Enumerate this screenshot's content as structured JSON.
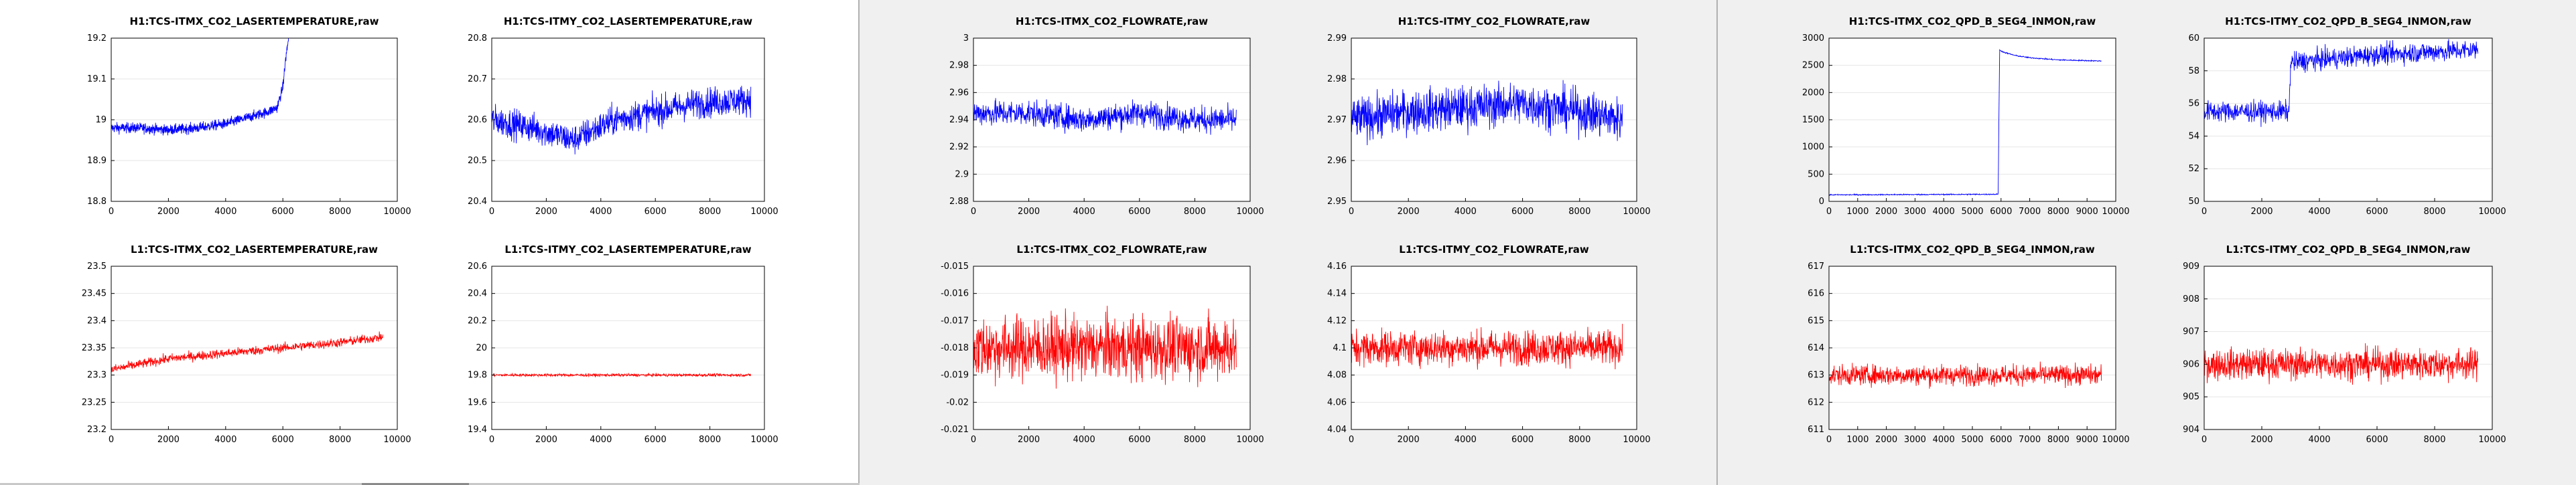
{
  "colors": {
    "h1_series": "#0000ff",
    "l1_series": "#ff0000",
    "axis": "#000000",
    "grid": "#e6e6e6",
    "panel_left": "#ffffff",
    "panel_mid": "#f0f0f0",
    "panel_right": "#f0f0f0"
  },
  "chart_data": [
    {
      "type": "line",
      "title": "H1:TCS-ITMX_CO2_LASERTEMPERATURE,raw",
      "xlim": [
        0,
        10000
      ],
      "ylim": [
        18.8,
        19.2
      ],
      "xticks": [
        "0",
        "2000",
        "4000",
        "6000",
        "8000",
        "10000"
      ],
      "yticks": [
        "18.8",
        "18.9",
        "19",
        "19.1",
        "19.2"
      ],
      "yvals": [
        18.8,
        18.9,
        19.0,
        19.1,
        19.2
      ],
      "series": [
        {
          "color": "#0000ff",
          "x": [
            0,
            1000,
            2000,
            3000,
            4000,
            4500,
            5000,
            5500,
            5800,
            6000,
            6100,
            6200
          ],
          "y": [
            18.98,
            18.98,
            18.975,
            18.98,
            18.99,
            19.0,
            19.01,
            19.02,
            19.03,
            19.08,
            19.15,
            19.2
          ]
        }
      ],
      "noise": 0.012
    },
    {
      "type": "line",
      "title": "H1:TCS-ITMY_CO2_LASERTEMPERATURE,raw",
      "xlim": [
        0,
        10000
      ],
      "ylim": [
        20.4,
        20.8
      ],
      "xticks": [
        "0",
        "2000",
        "4000",
        "6000",
        "8000",
        "10000"
      ],
      "yticks": [
        "20.4",
        "20.5",
        "20.6",
        "20.7",
        "20.8"
      ],
      "yvals": [
        20.4,
        20.5,
        20.6,
        20.7,
        20.8
      ],
      "series": [
        {
          "color": "#0000ff",
          "x": [
            0,
            1500,
            3000,
            4500,
            6000,
            7500,
            9500
          ],
          "y": [
            20.6,
            20.58,
            20.55,
            20.6,
            20.62,
            20.64,
            20.65
          ]
        }
      ],
      "noise": 0.035
    },
    {
      "type": "line",
      "title": "L1:TCS-ITMX_CO2_LASERTEMPERATURE,raw",
      "xlim": [
        0,
        10000
      ],
      "ylim": [
        23.2,
        23.5
      ],
      "xticks": [
        "0",
        "2000",
        "4000",
        "6000",
        "8000",
        "10000"
      ],
      "yticks": [
        "23.2",
        "23.25",
        "23.3",
        "23.35",
        "23.4",
        "23.45",
        "23.5"
      ],
      "yvals": [
        23.2,
        23.25,
        23.3,
        23.35,
        23.4,
        23.45,
        23.5
      ],
      "series": [
        {
          "color": "#ff0000",
          "x": [
            0,
            2000,
            4000,
            6000,
            8000,
            9500
          ],
          "y": [
            23.31,
            23.33,
            23.34,
            23.35,
            23.36,
            23.37
          ]
        }
      ],
      "noise": 0.008
    },
    {
      "type": "line",
      "title": "L1:TCS-ITMY_CO2_LASERTEMPERATURE,raw",
      "xlim": [
        0,
        10000
      ],
      "ylim": [
        19.4,
        20.6
      ],
      "xticks": [
        "0",
        "2000",
        "4000",
        "6000",
        "8000",
        "10000"
      ],
      "yticks": [
        "19.4",
        "19.6",
        "19.8",
        "20",
        "20.2",
        "20.4",
        "20.6"
      ],
      "yvals": [
        19.4,
        19.6,
        19.8,
        20.0,
        20.2,
        20.4,
        20.6
      ],
      "series": [
        {
          "color": "#ff0000",
          "x": [
            0,
            9500
          ],
          "y": [
            19.8,
            19.8
          ]
        }
      ],
      "noise": 0.01
    },
    {
      "type": "line",
      "title": "H1:TCS-ITMX_CO2_FLOWRATE,raw",
      "xlim": [
        0,
        10000
      ],
      "ylim": [
        2.88,
        3.0
      ],
      "xticks": [
        "0",
        "2000",
        "4000",
        "6000",
        "8000",
        "10000"
      ],
      "yticks": [
        "2.88",
        "2.9",
        "2.92",
        "2.94",
        "2.96",
        "2.98",
        "3"
      ],
      "yvals": [
        2.88,
        2.9,
        2.92,
        2.94,
        2.96,
        2.98,
        3.0
      ],
      "series": [
        {
          "color": "#0000ff",
          "x": [
            0,
            2000,
            4000,
            6000,
            8000,
            9500
          ],
          "y": [
            2.945,
            2.945,
            2.94,
            2.945,
            2.94,
            2.94
          ]
        }
      ],
      "noise": 0.009
    },
    {
      "type": "line",
      "title": "H1:TCS-ITMY_CO2_FLOWRATE,raw",
      "xlim": [
        0,
        10000
      ],
      "ylim": [
        2.95,
        2.99
      ],
      "xticks": [
        "0",
        "2000",
        "4000",
        "6000",
        "8000",
        "10000"
      ],
      "yticks": [
        "2.95",
        "2.96",
        "2.97",
        "2.98",
        "2.99"
      ],
      "yvals": [
        2.95,
        2.96,
        2.97,
        2.98,
        2.99
      ],
      "series": [
        {
          "color": "#0000ff",
          "x": [
            0,
            2000,
            4000,
            6000,
            8000,
            9500
          ],
          "y": [
            2.97,
            2.972,
            2.973,
            2.974,
            2.972,
            2.97
          ]
        }
      ],
      "noise": 0.005
    },
    {
      "type": "line",
      "title": "L1:TCS-ITMX_CO2_FLOWRATE,raw",
      "xlim": [
        0,
        10000
      ],
      "ylim": [
        -0.021,
        -0.015
      ],
      "xticks": [
        "0",
        "2000",
        "4000",
        "6000",
        "8000",
        "10000"
      ],
      "yticks": [
        "-0.021",
        "-0.02",
        "-0.019",
        "-0.018",
        "-0.017",
        "-0.016",
        "-0.015"
      ],
      "yvals": [
        -0.021,
        -0.02,
        -0.019,
        -0.018,
        -0.017,
        -0.016,
        -0.015
      ],
      "series": [
        {
          "color": "#ff0000",
          "x": [
            0,
            9500
          ],
          "y": [
            -0.018,
            -0.018
          ]
        }
      ],
      "noise": 0.0011
    },
    {
      "type": "line",
      "title": "L1:TCS-ITMY_CO2_FLOWRATE,raw",
      "xlim": [
        0,
        10000
      ],
      "ylim": [
        4.04,
        4.16
      ],
      "xticks": [
        "0",
        "2000",
        "4000",
        "6000",
        "8000",
        "10000"
      ],
      "yticks": [
        "4.04",
        "4.06",
        "4.08",
        "4.1",
        "4.12",
        "4.14",
        "4.16"
      ],
      "yvals": [
        4.04,
        4.06,
        4.08,
        4.1,
        4.12,
        4.14,
        4.16
      ],
      "series": [
        {
          "color": "#ff0000",
          "x": [
            0,
            9500
          ],
          "y": [
            4.1,
            4.1
          ]
        }
      ],
      "noise": 0.012
    },
    {
      "type": "line",
      "title": "H1:TCS-ITMX_CO2_QPD_B_SEG4_INMON,raw",
      "xlim": [
        0,
        10000
      ],
      "ylim": [
        0,
        3000
      ],
      "xticks": [
        "0",
        "1000",
        "2000",
        "3000",
        "4000",
        "5000",
        "6000",
        "7000",
        "8000",
        "9000",
        "10000"
      ],
      "yticks": [
        "0",
        "500",
        "1000",
        "1500",
        "2000",
        "2500",
        "3000"
      ],
      "yvals": [
        0,
        500,
        1000,
        1500,
        2000,
        2500,
        3000
      ],
      "series": [
        {
          "color": "#0000ff",
          "x": [
            0,
            5900,
            5950,
            6100,
            6500,
            7000,
            8000,
            9500
          ],
          "y": [
            120,
            130,
            2780,
            2740,
            2680,
            2640,
            2600,
            2580
          ]
        }
      ],
      "noise": 10
    },
    {
      "type": "line",
      "title": "H1:TCS-ITMY_CO2_QPD_B_SEG4_INMON,raw",
      "xlim": [
        0,
        10000
      ],
      "ylim": [
        50,
        60
      ],
      "xticks": [
        "0",
        "2000",
        "4000",
        "6000",
        "8000",
        "10000"
      ],
      "yticks": [
        "50",
        "52",
        "54",
        "56",
        "58",
        "60"
      ],
      "yvals": [
        50,
        52,
        54,
        56,
        58,
        60
      ],
      "series": [
        {
          "color": "#0000ff",
          "x": [
            0,
            2950,
            3000,
            6000,
            9500
          ],
          "y": [
            55.5,
            55.5,
            58.5,
            59.0,
            59.3
          ]
        }
      ],
      "noise": 0.6
    },
    {
      "type": "line",
      "title": "L1:TCS-ITMX_CO2_QPD_B_SEG4_INMON,raw",
      "xlim": [
        0,
        10000
      ],
      "ylim": [
        611,
        617
      ],
      "xticks": [
        "0",
        "1000",
        "2000",
        "3000",
        "4000",
        "5000",
        "6000",
        "7000",
        "8000",
        "9000",
        "10000"
      ],
      "yticks": [
        "611",
        "612",
        "613",
        "614",
        "615",
        "616",
        "617"
      ],
      "yvals": [
        611,
        612,
        613,
        614,
        615,
        616,
        617
      ],
      "series": [
        {
          "color": "#ff0000",
          "x": [
            0,
            9500
          ],
          "y": [
            613,
            613
          ]
        }
      ],
      "noise": 0.35
    },
    {
      "type": "line",
      "title": "L1:TCS-ITMY_CO2_QPD_B_SEG4_INMON,raw",
      "xlim": [
        0,
        10000
      ],
      "ylim": [
        904,
        909
      ],
      "xticks": [
        "0",
        "2000",
        "4000",
        "6000",
        "8000",
        "10000"
      ],
      "yticks": [
        "904",
        "905",
        "906",
        "907",
        "908",
        "909"
      ],
      "yvals": [
        904,
        905,
        906,
        907,
        908,
        909
      ],
      "series": [
        {
          "color": "#ff0000",
          "x": [
            0,
            9500
          ],
          "y": [
            906,
            906
          ]
        }
      ],
      "noise": 0.45
    }
  ]
}
